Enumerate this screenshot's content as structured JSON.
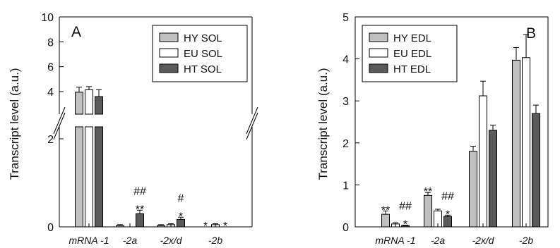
{
  "chart_data": [
    {
      "type": "bar",
      "panel_label": "A",
      "ylabel": "Transcript level  (a.u.)",
      "axis_break": true,
      "ylim_lower": [
        0,
        2
      ],
      "ylim_upper": [
        3,
        10
      ],
      "yticks_lower": [
        "0",
        "2"
      ],
      "yticks_upper": [
        "4",
        "6",
        "8",
        "10"
      ],
      "categories": [
        "mRNA -1",
        "-2a",
        "-2x/d",
        "-2b"
      ],
      "legend": "top-right",
      "series": [
        {
          "name": "HY SOL",
          "color": "#c0c0c0",
          "values": [
            3.95,
            0.03,
            0.03,
            0.0
          ],
          "errors": [
            0.4,
            0.02,
            0.02,
            0.0
          ]
        },
        {
          "name": "EU SOL",
          "color": "#ffffff",
          "values": [
            4.15,
            0.0,
            0.05,
            0.05
          ],
          "errors": [
            0.25,
            0.0,
            0.02,
            0.02
          ]
        },
        {
          "name": "HT SOL",
          "color": "#5a5a5a",
          "values": [
            3.6,
            0.3,
            0.17,
            0.0
          ],
          "errors": [
            0.55,
            0.08,
            0.05,
            0.0
          ]
        }
      ],
      "annotations": [
        {
          "category": 1,
          "series": 2,
          "lines": [
            "##",
            "**"
          ]
        },
        {
          "category": 2,
          "series": 2,
          "lines": [
            "#",
            "*"
          ]
        },
        {
          "category": 3,
          "series": 0,
          "lines": [
            "*"
          ]
        },
        {
          "category": 3,
          "series": 2,
          "lines": [
            "*"
          ]
        }
      ]
    },
    {
      "type": "bar",
      "panel_label": "B",
      "ylabel": "Transcript level  (a.u.)",
      "ylim": [
        0,
        5
      ],
      "yticks": [
        "0",
        "1",
        "2",
        "3",
        "4",
        "5"
      ],
      "categories": [
        "mRNA -1",
        "-2a",
        "-2x/d",
        "-2b"
      ],
      "legend": "top-left",
      "series": [
        {
          "name": "HY EDL",
          "color": "#c0c0c0",
          "values": [
            0.3,
            0.75,
            1.8,
            3.97
          ],
          "errors": [
            0.08,
            0.07,
            0.12,
            0.3
          ]
        },
        {
          "name": "EU EDL",
          "color": "#ffffff",
          "values": [
            0.07,
            0.38,
            3.12,
            4.03
          ],
          "errors": [
            0.03,
            0.04,
            0.35,
            0.55
          ]
        },
        {
          "name": "HT EDL",
          "color": "#5a5a5a",
          "values": [
            0.03,
            0.25,
            2.3,
            2.7
          ],
          "errors": [
            0.01,
            0.03,
            0.12,
            0.2
          ]
        }
      ],
      "annotations": [
        {
          "category": 0,
          "series": 0,
          "lines": [
            "**"
          ]
        },
        {
          "category": 0,
          "series": 2,
          "lines": [
            "##",
            "*"
          ]
        },
        {
          "category": 1,
          "series": 0,
          "lines": [
            "**"
          ]
        },
        {
          "category": 1,
          "series": 2,
          "lines": [
            "##",
            "*"
          ]
        }
      ]
    }
  ]
}
